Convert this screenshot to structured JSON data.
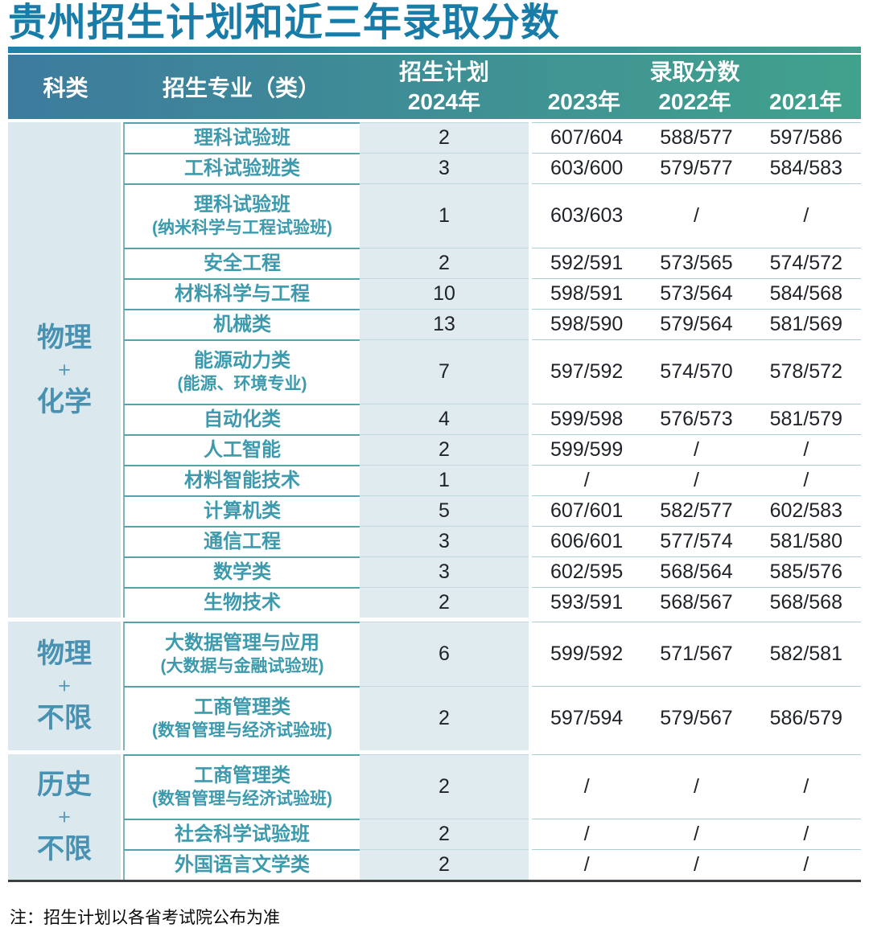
{
  "title": "贵州招生计划和近三年录取分数",
  "note": "注：招生计划以各省考试院公布为准",
  "colors": {
    "title_text": "#177CA8",
    "header_gradient_left": "#3D7B9E",
    "header_gradient_right": "#41A28C",
    "rule_gradient_left": "#1F82AE",
    "rule_gradient_right": "#3FA08D",
    "category_bg": "#DBE8EE",
    "plan_col_bg": "#E0EBF0",
    "major_text": "#3D9AAD",
    "category_text": "#4791B3",
    "score_text": "#1f2329"
  },
  "header": {
    "col_category": "科类",
    "col_major": "招生专业（类）",
    "col_plan": "招生计划",
    "plan_year": "2024年",
    "col_scores": "录取分数",
    "score_years": [
      "2023年",
      "2022年",
      "2021年"
    ]
  },
  "chart_data": {
    "type": "table",
    "title": "贵州招生计划和近三年录取分数",
    "columns": [
      "科类",
      "招生专业（类）",
      "招生计划2024年",
      "录取分数2023年",
      "录取分数2022年",
      "录取分数2021年"
    ]
  },
  "groups": [
    {
      "category": [
        "物理",
        "+",
        "化学"
      ],
      "rows": [
        {
          "major": "理科试验班",
          "sub": "",
          "plan": "2",
          "scores": [
            "607/604",
            "588/577",
            "597/586"
          ]
        },
        {
          "major": "工科试验班类",
          "sub": "",
          "plan": "3",
          "scores": [
            "603/600",
            "579/577",
            "584/583"
          ]
        },
        {
          "major": "理科试验班",
          "sub": "(纳米科学与工程试验班)",
          "plan": "1",
          "scores": [
            "603/603",
            "/",
            "/"
          ]
        },
        {
          "major": "安全工程",
          "sub": "",
          "plan": "2",
          "scores": [
            "592/591",
            "573/565",
            "574/572"
          ]
        },
        {
          "major": "材料科学与工程",
          "sub": "",
          "plan": "10",
          "scores": [
            "598/591",
            "573/564",
            "584/568"
          ]
        },
        {
          "major": "机械类",
          "sub": "",
          "plan": "13",
          "scores": [
            "598/590",
            "579/564",
            "581/569"
          ]
        },
        {
          "major": "能源动力类",
          "sub": "(能源、环境专业)",
          "plan": "7",
          "scores": [
            "597/592",
            "574/570",
            "578/572"
          ]
        },
        {
          "major": "自动化类",
          "sub": "",
          "plan": "4",
          "scores": [
            "599/598",
            "576/573",
            "581/579"
          ]
        },
        {
          "major": "人工智能",
          "sub": "",
          "plan": "2",
          "scores": [
            "599/599",
            "/",
            "/"
          ]
        },
        {
          "major": "材料智能技术",
          "sub": "",
          "plan": "1",
          "scores": [
            "/",
            "/",
            "/"
          ]
        },
        {
          "major": "计算机类",
          "sub": "",
          "plan": "5",
          "scores": [
            "607/601",
            "582/577",
            "602/583"
          ]
        },
        {
          "major": "通信工程",
          "sub": "",
          "plan": "3",
          "scores": [
            "606/601",
            "577/574",
            "581/580"
          ]
        },
        {
          "major": "数学类",
          "sub": "",
          "plan": "3",
          "scores": [
            "602/595",
            "568/564",
            "585/576"
          ]
        },
        {
          "major": "生物技术",
          "sub": "",
          "plan": "2",
          "scores": [
            "593/591",
            "568/567",
            "568/568"
          ]
        }
      ]
    },
    {
      "category": [
        "物理",
        "+",
        "不限"
      ],
      "rows": [
        {
          "major": "大数据管理与应用",
          "sub": "(大数据与金融试验班)",
          "plan": "6",
          "scores": [
            "599/592",
            "571/567",
            "582/581"
          ]
        },
        {
          "major": "工商管理类",
          "sub": "(数智管理与经济试验班)",
          "plan": "2",
          "scores": [
            "597/594",
            "579/567",
            "586/579"
          ]
        }
      ]
    },
    {
      "category": [
        "历史",
        "+",
        "不限"
      ],
      "rows": [
        {
          "major": "工商管理类",
          "sub": "(数智管理与经济试验班)",
          "plan": "2",
          "scores": [
            "/",
            "/",
            "/"
          ]
        },
        {
          "major": "社会科学试验班",
          "sub": "",
          "plan": "2",
          "scores": [
            "/",
            "/",
            "/"
          ]
        },
        {
          "major": "外国语言文学类",
          "sub": "",
          "plan": "2",
          "scores": [
            "/",
            "/",
            "/"
          ]
        }
      ]
    }
  ]
}
